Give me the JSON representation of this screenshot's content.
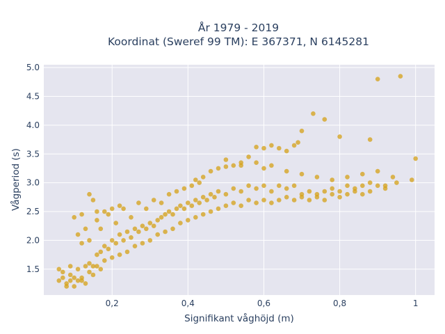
{
  "chart_data": {
    "type": "scatter",
    "title_lines": [
      "År 1979 - 2019",
      "Koordinat (Sweref 99 TM): E 367371, N 6145281"
    ],
    "xlabel": "Signifikant våghöjd (m)",
    "ylabel": "Vågperiod (s)",
    "xlim": [
      0.02,
      1.05
    ],
    "ylim": [
      1.05,
      5.05
    ],
    "xticks": [
      0.2,
      0.4,
      0.6,
      0.8,
      1.0
    ],
    "xtick_labels": [
      "0,2",
      "0,4",
      "0,6",
      "0,8",
      "1"
    ],
    "yticks": [
      1.5,
      2.0,
      2.5,
      3.0,
      3.5,
      4.0,
      4.5,
      5.0
    ],
    "ytick_labels": [
      "1.5",
      "2.0",
      "2.5",
      "3.0",
      "3.5",
      "4.0",
      "4.5",
      "5.0"
    ],
    "grid": true,
    "legend": "none",
    "marker_color": "#d4a017",
    "background": "#e5e5ef",
    "points": [
      [
        0.06,
        1.3
      ],
      [
        0.07,
        1.45
      ],
      [
        0.08,
        1.25
      ],
      [
        0.09,
        1.4
      ],
      [
        0.1,
        1.35
      ],
      [
        0.11,
        1.5
      ],
      [
        0.12,
        1.3
      ],
      [
        0.13,
        1.55
      ],
      [
        0.14,
        1.6
      ],
      [
        0.15,
        1.55
      ],
      [
        0.16,
        1.75
      ],
      [
        0.17,
        1.8
      ],
      [
        0.18,
        1.9
      ],
      [
        0.19,
        1.85
      ],
      [
        0.2,
        2.0
      ],
      [
        0.21,
        1.95
      ],
      [
        0.22,
        2.1
      ],
      [
        0.23,
        2.0
      ],
      [
        0.24,
        2.15
      ],
      [
        0.25,
        2.05
      ],
      [
        0.26,
        2.2
      ],
      [
        0.27,
        2.15
      ],
      [
        0.28,
        2.25
      ],
      [
        0.29,
        2.2
      ],
      [
        0.3,
        2.3
      ],
      [
        0.31,
        2.25
      ],
      [
        0.32,
        2.35
      ],
      [
        0.33,
        2.4
      ],
      [
        0.34,
        2.45
      ],
      [
        0.35,
        2.5
      ],
      [
        0.36,
        2.45
      ],
      [
        0.37,
        2.55
      ],
      [
        0.38,
        2.6
      ],
      [
        0.39,
        2.55
      ],
      [
        0.4,
        2.65
      ],
      [
        0.41,
        2.6
      ],
      [
        0.42,
        2.7
      ],
      [
        0.43,
        2.65
      ],
      [
        0.44,
        2.75
      ],
      [
        0.45,
        2.7
      ],
      [
        0.46,
        2.8
      ],
      [
        0.47,
        2.75
      ],
      [
        0.48,
        2.85
      ],
      [
        0.5,
        2.8
      ],
      [
        0.52,
        2.9
      ],
      [
        0.54,
        2.85
      ],
      [
        0.56,
        2.95
      ],
      [
        0.58,
        2.9
      ],
      [
        0.6,
        2.95
      ],
      [
        0.62,
        2.85
      ],
      [
        0.64,
        2.95
      ],
      [
        0.66,
        2.9
      ],
      [
        0.68,
        2.95
      ],
      [
        0.7,
        2.8
      ],
      [
        0.72,
        2.85
      ],
      [
        0.74,
        2.8
      ],
      [
        0.76,
        2.85
      ],
      [
        0.78,
        2.9
      ],
      [
        0.8,
        2.85
      ],
      [
        0.82,
        2.95
      ],
      [
        0.84,
        2.9
      ],
      [
        0.86,
        2.95
      ],
      [
        0.88,
        3.0
      ],
      [
        0.9,
        2.95
      ],
      [
        0.92,
        2.9
      ],
      [
        0.95,
        3.0
      ],
      [
        0.99,
        3.05
      ],
      [
        1.0,
        3.42
      ],
      [
        0.9,
        4.8
      ],
      [
        0.96,
        4.85
      ],
      [
        0.88,
        3.75
      ],
      [
        0.8,
        3.8
      ],
      [
        0.76,
        4.1
      ],
      [
        0.73,
        4.2
      ],
      [
        0.7,
        3.9
      ],
      [
        0.69,
        3.7
      ],
      [
        0.68,
        3.65
      ],
      [
        0.66,
        3.55
      ],
      [
        0.64,
        3.6
      ],
      [
        0.62,
        3.65
      ],
      [
        0.6,
        3.6
      ],
      [
        0.58,
        3.62
      ],
      [
        0.56,
        3.45
      ],
      [
        0.54,
        3.35
      ],
      [
        0.52,
        3.3
      ],
      [
        0.5,
        3.28
      ],
      [
        0.48,
        3.25
      ],
      [
        0.46,
        3.2
      ],
      [
        0.44,
        3.1
      ],
      [
        0.42,
        3.05
      ],
      [
        0.5,
        3.4
      ],
      [
        0.54,
        3.3
      ],
      [
        0.58,
        3.35
      ],
      [
        0.6,
        3.25
      ],
      [
        0.62,
        3.3
      ],
      [
        0.66,
        3.2
      ],
      [
        0.7,
        3.15
      ],
      [
        0.74,
        3.1
      ],
      [
        0.78,
        3.05
      ],
      [
        0.82,
        3.1
      ],
      [
        0.86,
        3.15
      ],
      [
        0.9,
        3.2
      ],
      [
        0.94,
        3.1
      ],
      [
        0.18,
        2.5
      ],
      [
        0.2,
        2.55
      ],
      [
        0.22,
        2.6
      ],
      [
        0.16,
        2.5
      ],
      [
        0.15,
        2.7
      ],
      [
        0.14,
        2.8
      ],
      [
        0.12,
        2.45
      ],
      [
        0.1,
        2.4
      ],
      [
        0.13,
        2.2
      ],
      [
        0.11,
        2.1
      ],
      [
        0.12,
        1.95
      ],
      [
        0.14,
        2.0
      ],
      [
        0.16,
        2.35
      ],
      [
        0.17,
        2.2
      ],
      [
        0.19,
        2.45
      ],
      [
        0.21,
        2.3
      ],
      [
        0.23,
        2.55
      ],
      [
        0.25,
        2.4
      ],
      [
        0.27,
        2.65
      ],
      [
        0.29,
        2.55
      ],
      [
        0.31,
        2.7
      ],
      [
        0.33,
        2.65
      ],
      [
        0.35,
        2.8
      ],
      [
        0.37,
        2.85
      ],
      [
        0.39,
        2.9
      ],
      [
        0.41,
        2.95
      ],
      [
        0.43,
        3.0
      ],
      [
        0.3,
        2.0
      ],
      [
        0.28,
        1.95
      ],
      [
        0.26,
        1.9
      ],
      [
        0.24,
        1.8
      ],
      [
        0.22,
        1.75
      ],
      [
        0.2,
        1.7
      ],
      [
        0.18,
        1.65
      ],
      [
        0.16,
        1.55
      ],
      [
        0.14,
        1.45
      ],
      [
        0.12,
        1.35
      ],
      [
        0.32,
        2.1
      ],
      [
        0.34,
        2.15
      ],
      [
        0.36,
        2.2
      ],
      [
        0.38,
        2.3
      ],
      [
        0.4,
        2.35
      ],
      [
        0.42,
        2.4
      ],
      [
        0.44,
        2.45
      ],
      [
        0.46,
        2.5
      ],
      [
        0.48,
        2.55
      ],
      [
        0.5,
        2.6
      ],
      [
        0.52,
        2.65
      ],
      [
        0.54,
        2.6
      ],
      [
        0.56,
        2.7
      ],
      [
        0.58,
        2.65
      ],
      [
        0.6,
        2.7
      ],
      [
        0.62,
        2.65
      ],
      [
        0.64,
        2.7
      ],
      [
        0.66,
        2.75
      ],
      [
        0.68,
        2.7
      ],
      [
        0.7,
        2.75
      ],
      [
        0.72,
        2.7
      ],
      [
        0.74,
        2.75
      ],
      [
        0.76,
        2.7
      ],
      [
        0.78,
        2.8
      ],
      [
        0.8,
        2.75
      ],
      [
        0.82,
        2.8
      ],
      [
        0.84,
        2.85
      ],
      [
        0.86,
        2.8
      ],
      [
        0.88,
        2.85
      ],
      [
        0.92,
        2.95
      ],
      [
        0.08,
        1.2
      ],
      [
        0.09,
        1.55
      ],
      [
        0.1,
        1.2
      ],
      [
        0.11,
        1.3
      ],
      [
        0.07,
        1.35
      ],
      [
        0.06,
        1.5
      ],
      [
        0.09,
        1.3
      ],
      [
        0.13,
        1.25
      ],
      [
        0.15,
        1.4
      ],
      [
        0.17,
        1.5
      ]
    ]
  }
}
